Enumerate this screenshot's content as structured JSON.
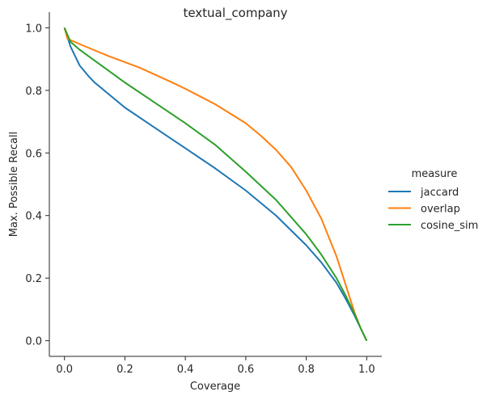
{
  "chart_data": {
    "type": "line",
    "title": "textual_company",
    "xlabel": "Coverage",
    "ylabel": "Max. Possible Recall",
    "xlim": [
      -0.05,
      1.05
    ],
    "ylim": [
      -0.05,
      1.05
    ],
    "x_ticks": [
      "0.0",
      "0.2",
      "0.4",
      "0.6",
      "0.8",
      "1.0"
    ],
    "y_ticks": [
      "0.0",
      "0.2",
      "0.4",
      "0.6",
      "0.8",
      "1.0"
    ],
    "grid": false,
    "legend": {
      "title": "measure",
      "placement": "right"
    },
    "colors": {
      "jaccard": "#1f77b4",
      "overlap": "#ff7f0e",
      "cosine_sim": "#2ca02c"
    },
    "series": [
      {
        "name": "jaccard",
        "x": [
          0.0,
          0.02,
          0.05,
          0.08,
          0.1,
          0.15,
          0.2,
          0.3,
          0.4,
          0.5,
          0.6,
          0.7,
          0.8,
          0.85,
          0.9,
          0.93,
          0.96,
          0.98,
          1.0
        ],
        "y": [
          1.0,
          0.94,
          0.88,
          0.845,
          0.825,
          0.785,
          0.745,
          0.68,
          0.615,
          0.55,
          0.48,
          0.4,
          0.305,
          0.25,
          0.185,
          0.135,
          0.08,
          0.04,
          0.0
        ]
      },
      {
        "name": "overlap",
        "x": [
          0.0,
          0.01,
          0.05,
          0.1,
          0.15,
          0.2,
          0.25,
          0.3,
          0.35,
          0.4,
          0.45,
          0.5,
          0.55,
          0.6,
          0.65,
          0.7,
          0.75,
          0.8,
          0.85,
          0.9,
          0.93,
          0.96,
          0.98,
          1.0
        ],
        "y": [
          1.0,
          0.965,
          0.948,
          0.928,
          0.908,
          0.89,
          0.872,
          0.85,
          0.828,
          0.805,
          0.78,
          0.755,
          0.725,
          0.695,
          0.655,
          0.61,
          0.555,
          0.48,
          0.39,
          0.27,
          0.18,
          0.09,
          0.04,
          0.0
        ]
      },
      {
        "name": "cosine_sim",
        "x": [
          0.0,
          0.02,
          0.05,
          0.1,
          0.15,
          0.2,
          0.3,
          0.4,
          0.5,
          0.6,
          0.7,
          0.8,
          0.85,
          0.9,
          0.93,
          0.96,
          0.98,
          1.0
        ],
        "y": [
          1.0,
          0.955,
          0.93,
          0.895,
          0.86,
          0.825,
          0.76,
          0.695,
          0.625,
          0.54,
          0.45,
          0.34,
          0.275,
          0.2,
          0.145,
          0.085,
          0.04,
          0.0
        ]
      }
    ]
  }
}
